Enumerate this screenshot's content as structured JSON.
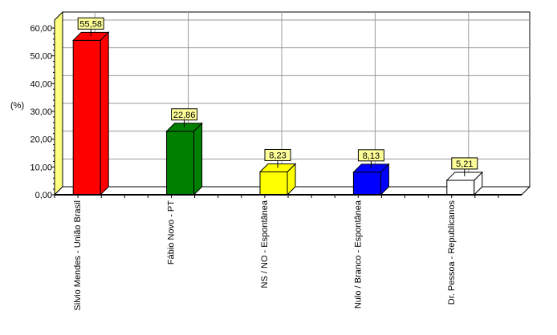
{
  "chart_data": {
    "type": "bar",
    "ylabel": "(%)",
    "ylim": [
      0,
      60
    ],
    "yticks": [
      "0,00",
      "10,00",
      "20,00",
      "30,00",
      "40,00",
      "50,00",
      "60,00"
    ],
    "grid": true,
    "categories": [
      "Silvio Mendes - União Brasil",
      "Fábio Novo - PT",
      "NS / NO - Espontânea",
      "Nulo / Branco - Espontânea",
      "Dr. Pessoa - Republicanos"
    ],
    "values": [
      55.58,
      22.86,
      8.23,
      8.13,
      5.21
    ],
    "data_labels": [
      "55,58",
      "22,86",
      "8,23",
      "8,13",
      "5,21"
    ],
    "colors": [
      "#ff0000",
      "#008000",
      "#ffff00",
      "#0000ff",
      "#ffffff"
    ],
    "label_bg": "#ffff99",
    "wall_color": "#ffff80"
  }
}
